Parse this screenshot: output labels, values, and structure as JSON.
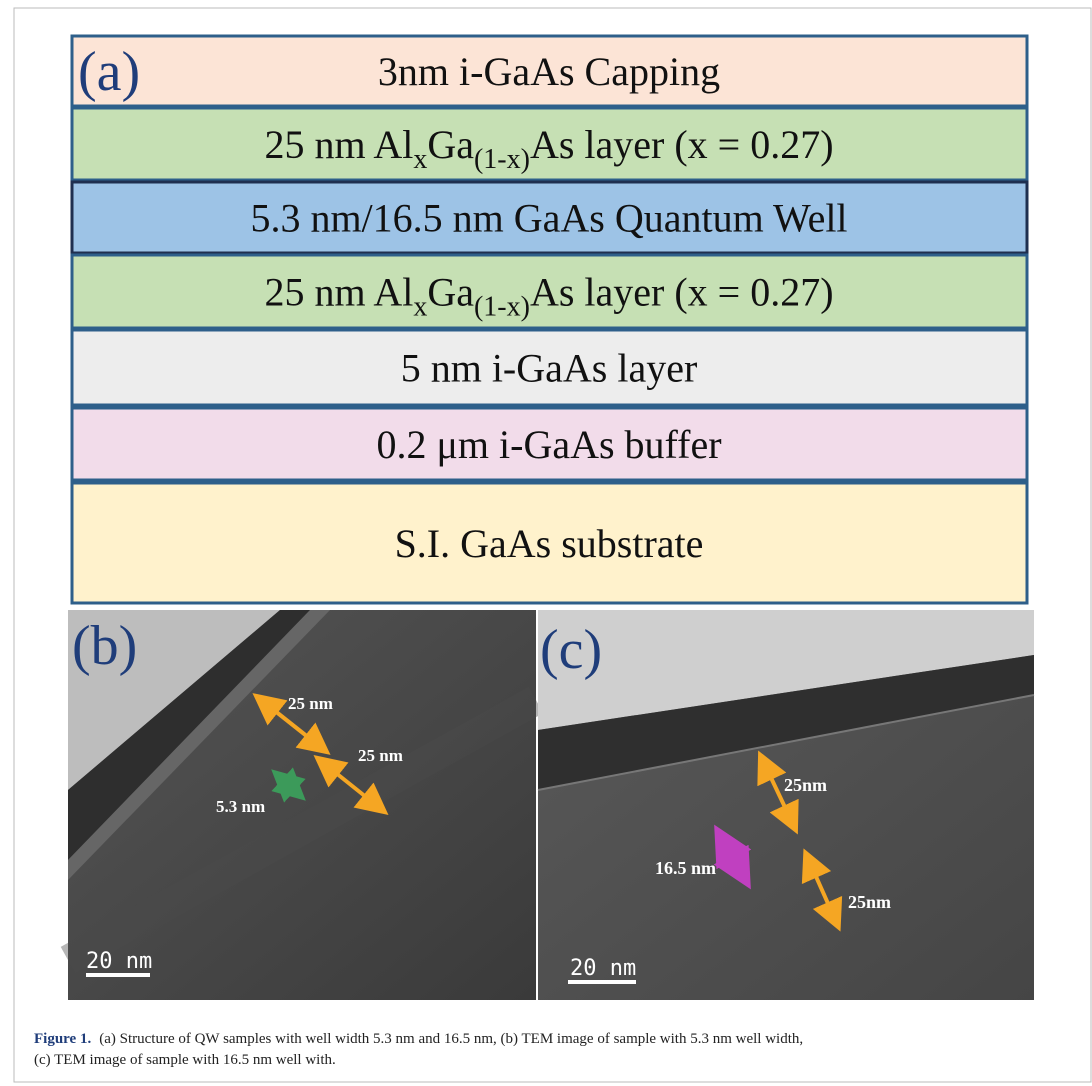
{
  "panel_a": {
    "label": "(a)",
    "layers": [
      {
        "parts": [
          "3nm i-GaAs Capping"
        ],
        "color": "#fce4d6"
      },
      {
        "parts": [
          "25 nm Al",
          "x",
          "Ga",
          "(1-x)",
          "As layer (x = 0.27)"
        ],
        "color": "#c6e0b4"
      },
      {
        "parts": [
          "5.3 nm/16.5 nm GaAs Quantum Well"
        ],
        "color": "#9dc3e6"
      },
      {
        "parts": [
          "25 nm Al",
          "x",
          "Ga",
          "(1-x)",
          "As layer (x = 0.27)"
        ],
        "color": "#c6e0b4"
      },
      {
        "parts": [
          "5 nm i-GaAs layer"
        ],
        "color": "#ededed"
      },
      {
        "parts": [
          "0.2 μm i-GaAs buffer"
        ],
        "color": "#f2dcea"
      },
      {
        "parts": [
          "S.I. GaAs substrate"
        ],
        "color": "#fff2cc"
      }
    ]
  },
  "panel_b": {
    "label": "(b)",
    "annotations": [
      "25 nm",
      "25 nm",
      "5.3 nm"
    ],
    "scale_bar": "20 nm"
  },
  "panel_c": {
    "label": "(c)",
    "annotations": [
      "25nm",
      "16.5 nm",
      "25nm"
    ],
    "scale_bar": "20 nm"
  },
  "caption": {
    "label": "Figure 1.",
    "lines": [
      "(a) Structure of QW samples with well width 5.3 nm and 16.5 nm, (b) TEM image of sample with 5.3 nm well width,",
      "(c) TEM image of sample with 16.5 nm well with."
    ]
  }
}
